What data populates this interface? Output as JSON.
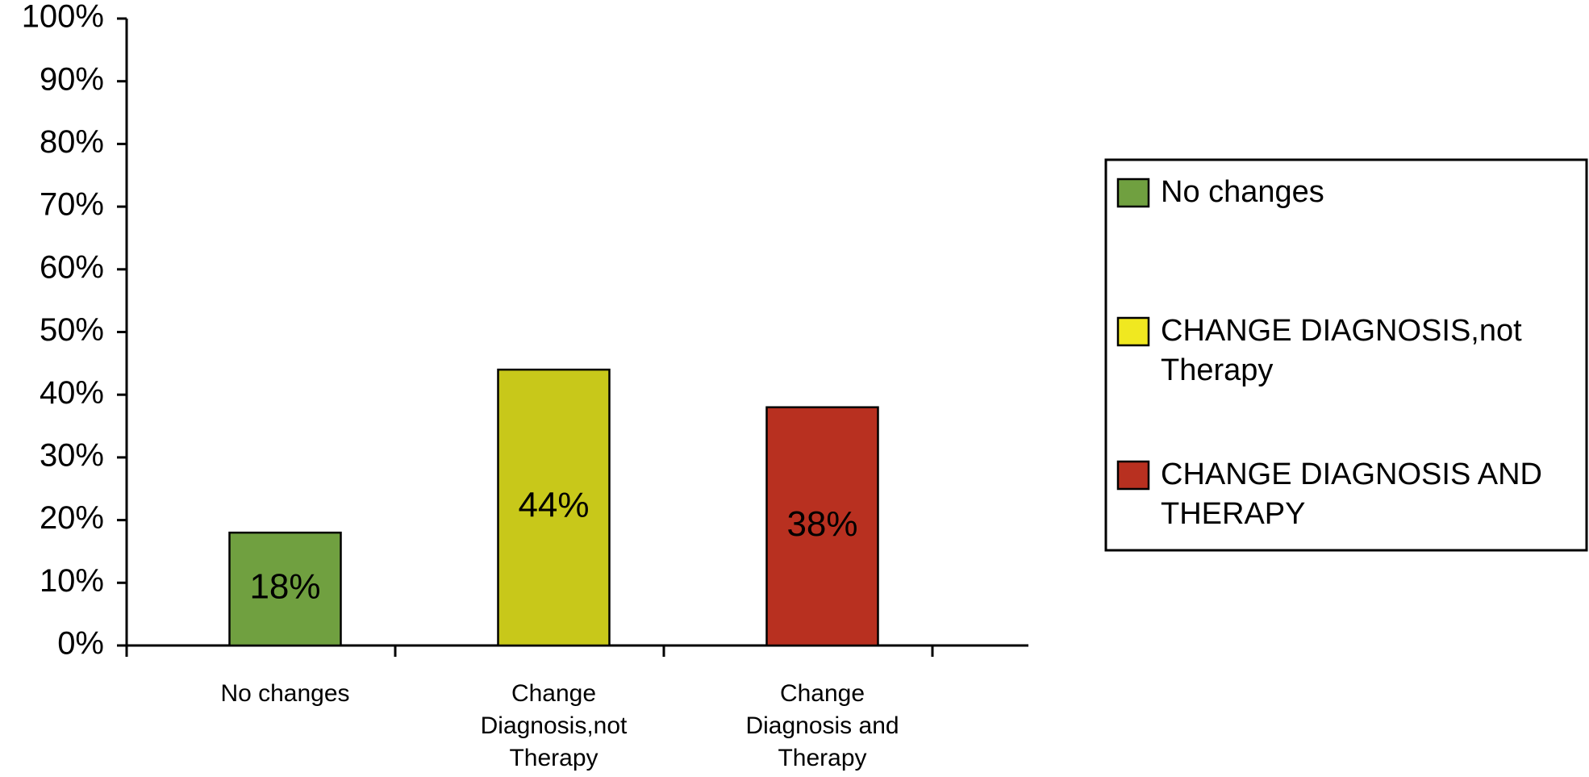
{
  "chart_data": {
    "type": "bar",
    "categories": [
      "No changes",
      "Change Diagnosis,not Therapy",
      "Change Diagnosis and Therapy"
    ],
    "values": [
      18,
      44,
      38
    ],
    "value_labels": [
      "18%",
      "44%",
      "38%"
    ],
    "colors": [
      "#70a040",
      "#c8c81a",
      "#b83020"
    ],
    "ylim": [
      0,
      100
    ],
    "yticks": [
      {
        "value": 0,
        "label": "0%"
      },
      {
        "value": 10,
        "label": "10%"
      },
      {
        "value": 20,
        "label": "20%"
      },
      {
        "value": 30,
        "label": "30%"
      },
      {
        "value": 40,
        "label": "40%"
      },
      {
        "value": 50,
        "label": "50%"
      },
      {
        "value": 60,
        "label": "60%"
      },
      {
        "value": 70,
        "label": "70%"
      },
      {
        "value": 80,
        "label": "80%"
      },
      {
        "value": 90,
        "label": "90%"
      },
      {
        "value": 100,
        "label": "100%"
      }
    ],
    "legend": [
      {
        "name": "No changes",
        "color": "#70a040"
      },
      {
        "name": "CHANGE DIAGNOSIS,not Therapy",
        "color": "#f0e820"
      },
      {
        "name": "CHANGE DIAGNOSIS AND THERAPY",
        "color": "#b83020"
      }
    ],
    "legend_position": "right"
  }
}
